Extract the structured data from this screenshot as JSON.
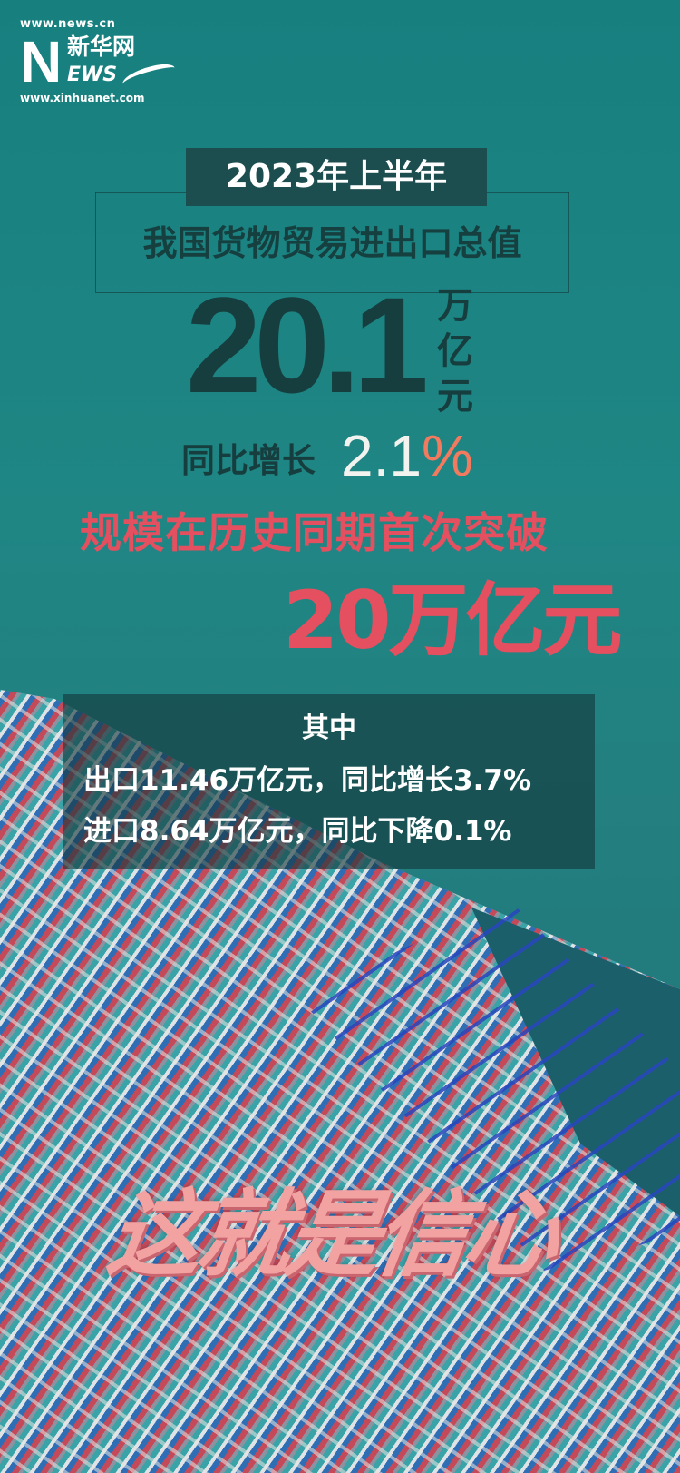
{
  "logo": {
    "url_top": "www.news.cn",
    "letter_n": "N",
    "brand_cn": "新华网",
    "letters_ews": "EWS",
    "url_bottom": "www.xinhuanet.com"
  },
  "headline": {
    "period": "2023年上半年",
    "subtitle": "我国货物贸易进出口总值",
    "total_value": "20.1",
    "unit": "万亿元",
    "growth_label": "同比增长",
    "growth_number": "2.1",
    "growth_pct": "%"
  },
  "record": {
    "text": "规模在历史同期首次突破",
    "value": "20万亿元"
  },
  "details": {
    "heading": "其中",
    "lines": [
      "出口11.46万亿元，同比增长3.7%",
      "进口8.64万亿元，同比下降0.1%"
    ]
  },
  "slogan": "这就是信心",
  "colors": {
    "background": "#1f8684",
    "dark_text": "#163e3f",
    "accent_red": "#e4505f",
    "slogan_pink": "#f3a2a2"
  }
}
